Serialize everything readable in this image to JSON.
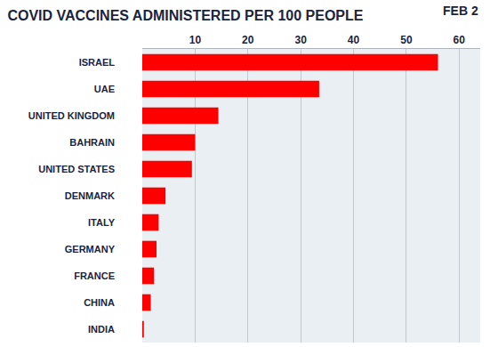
{
  "chart_data": {
    "type": "bar",
    "orientation": "horizontal",
    "title": "COVID VACCINES ADMINISTERED PER 100 PEOPLE",
    "subtitle": "FEB 2",
    "categories": [
      "ISRAEL",
      "UAE",
      "UNITED KINGDOM",
      "BAHRAIN",
      "UNITED STATES",
      "DENMARK",
      "ITALY",
      "GERMANY",
      "FRANCE",
      "CHINA",
      "INDIA"
    ],
    "values": [
      56,
      33.5,
      14.4,
      10,
      9.4,
      4.4,
      3.1,
      2.7,
      2.2,
      1.6,
      0.3
    ],
    "color": "#ff0000",
    "xlim": [
      0,
      64
    ],
    "xticks": [
      10,
      20,
      30,
      40,
      50,
      60
    ],
    "grid": true
  }
}
